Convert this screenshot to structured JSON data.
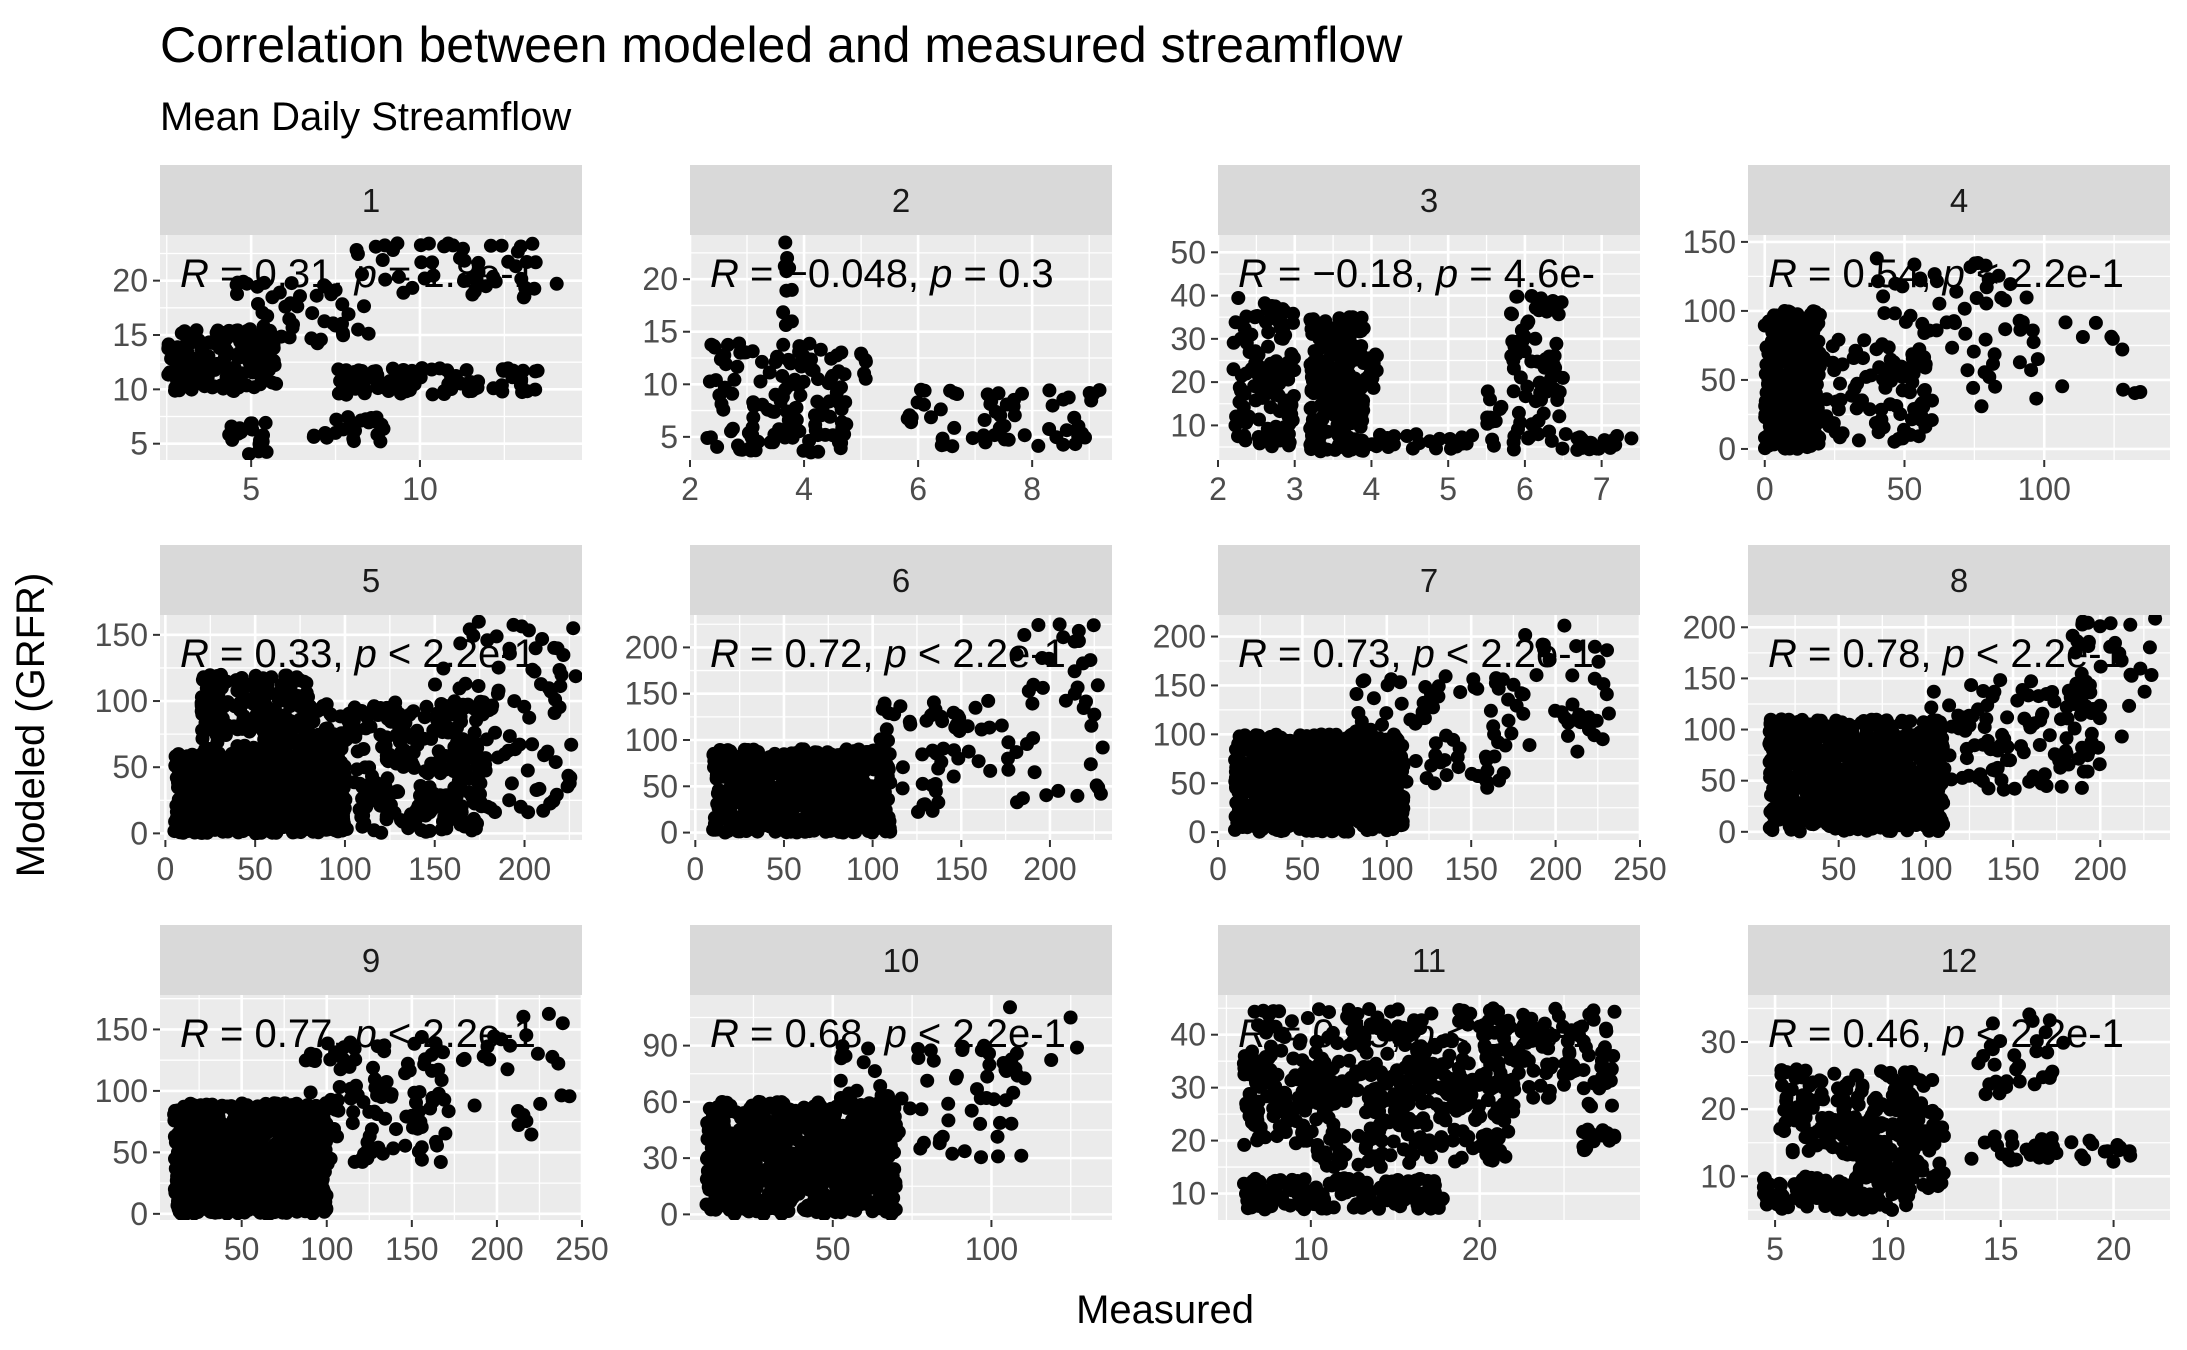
{
  "chart_data": {
    "type": "scatter",
    "title": "Correlation between modeled and measured streamflow",
    "subtitle": "Mean Daily Streamflow",
    "xlabel": "Measured",
    "ylabel": "Modeled (GRFR)",
    "grid": true,
    "colors": {
      "panel_bg": "#ebebeb",
      "strip_bg": "#d9d9d9",
      "grid": "#ffffff",
      "points": "#000000",
      "ticks": "#4d4d4d"
    },
    "facets": [
      {
        "label": "1",
        "r_value": "0.31",
        "p_value": "= 1.8e-1",
        "p_op": "=",
        "p_num": "1.8e-1",
        "xlim": [
          2.3,
          14.8
        ],
        "ylim": [
          3.5,
          24.2
        ],
        "xticks": [
          5,
          10
        ],
        "yticks": [
          5,
          10,
          15,
          20
        ],
        "clusters": [
          {
            "x": [
              2.5,
              5.8
            ],
            "y": [
              9.8,
              15.5
            ],
            "n": 150
          },
          {
            "x": [
              4.5,
              8.5
            ],
            "y": [
              14.0,
              20.0
            ],
            "n": 50
          },
          {
            "x": [
              8.0,
              14.2
            ],
            "y": [
              18.0,
              23.5
            ],
            "n": 50
          },
          {
            "x": [
              7.5,
              13.5
            ],
            "y": [
              9.5,
              12.0
            ],
            "n": 90
          },
          {
            "x": [
              6.8,
              9.0
            ],
            "y": [
              5.0,
              7.5
            ],
            "n": 25
          },
          {
            "x": [
              4.2,
              5.5
            ],
            "y": [
              4.0,
              7.0
            ],
            "n": 20
          }
        ]
      },
      {
        "label": "2",
        "r_value": "−0.048",
        "p_value": "= 0.3",
        "p_op": "=",
        "p_num": "0.3",
        "xlim": [
          2.0,
          9.4
        ],
        "ylim": [
          2.8,
          24.2
        ],
        "xticks": [
          2,
          4,
          6,
          8
        ],
        "yticks": [
          5,
          10,
          15,
          20
        ],
        "clusters": [
          {
            "x": [
              2.3,
              4.8
            ],
            "y": [
              3.5,
              14.0
            ],
            "n": 130
          },
          {
            "x": [
              3.6,
              3.8
            ],
            "y": [
              15.0,
              23.5
            ],
            "n": 10
          },
          {
            "x": [
              5.0,
              5.1
            ],
            "y": [
              10.0,
              13.0
            ],
            "n": 6
          },
          {
            "x": [
              5.8,
              9.2
            ],
            "y": [
              4.0,
              9.5
            ],
            "n": 60
          }
        ]
      },
      {
        "label": "3",
        "r_value": "−0.18",
        "p_value": "= 4.6e-",
        "p_op": "=",
        "p_num": "4.6e-",
        "xlim": [
          2.0,
          7.5
        ],
        "ylim": [
          2.0,
          54.0
        ],
        "xticks": [
          2,
          3,
          4,
          5,
          6,
          7
        ],
        "yticks": [
          10,
          20,
          30,
          40,
          50
        ],
        "clusters": [
          {
            "x": [
              2.2,
              3.0
            ],
            "y": [
              4.0,
              40.0
            ],
            "n": 120
          },
          {
            "x": [
              3.2,
              3.9
            ],
            "y": [
              4.0,
              35.0
            ],
            "n": 260
          },
          {
            "x": [
              3.9,
              4.1
            ],
            "y": [
              18.0,
              28.0
            ],
            "n": 12
          },
          {
            "x": [
              4.0,
              5.5
            ],
            "y": [
              4.0,
              8.0
            ],
            "n": 25
          },
          {
            "x": [
              5.5,
              5.7
            ],
            "y": [
              5.0,
              18.0
            ],
            "n": 12
          },
          {
            "x": [
              5.8,
              6.5
            ],
            "y": [
              4.0,
              40.0
            ],
            "n": 80
          },
          {
            "x": [
              6.5,
              7.4
            ],
            "y": [
              4.0,
              8.0
            ],
            "n": 20
          }
        ]
      },
      {
        "label": "4",
        "r_value": "0.54",
        "p_value": "< 2.2e-1",
        "p_op": "<",
        "p_num": "2.2e-1",
        "xlim": [
          -6,
          145
        ],
        "ylim": [
          -8,
          155
        ],
        "xticks": [
          0,
          50,
          100
        ],
        "yticks": [
          0,
          50,
          100,
          150
        ],
        "clusters": [
          {
            "x": [
              0,
              20
            ],
            "y": [
              0,
              100
            ],
            "n": 350
          },
          {
            "x": [
              10,
              60
            ],
            "y": [
              5,
              80
            ],
            "n": 90
          },
          {
            "x": [
              40,
              100
            ],
            "y": [
              30,
              140
            ],
            "n": 70
          },
          {
            "x": [
              100,
              140
            ],
            "y": [
              20,
              95
            ],
            "n": 10
          }
        ]
      },
      {
        "label": "5",
        "r_value": "0.33",
        "p_value": "< 2.2e-1",
        "p_op": "<",
        "p_num": "2.2e-1",
        "xlim": [
          -3,
          232
        ],
        "ylim": [
          -5,
          165
        ],
        "xticks": [
          0,
          50,
          100,
          150,
          200
        ],
        "yticks": [
          0,
          50,
          100,
          150
        ],
        "clusters": [
          {
            "x": [
              5,
              100
            ],
            "y": [
              0,
              60
            ],
            "n": 900
          },
          {
            "x": [
              20,
              80
            ],
            "y": [
              20,
              120
            ],
            "n": 300
          },
          {
            "x": [
              80,
              180
            ],
            "y": [
              0,
              100
            ],
            "n": 300
          },
          {
            "x": [
              150,
              230
            ],
            "y": [
              10,
              160
            ],
            "n": 90
          }
        ]
      },
      {
        "label": "6",
        "r_value": "0.72",
        "p_value": "< 2.2e-1",
        "p_op": "<",
        "p_num": "2.2e-1",
        "xlim": [
          -3,
          235
        ],
        "ylim": [
          -8,
          235
        ],
        "xticks": [
          0,
          50,
          100,
          150,
          200
        ],
        "yticks": [
          0,
          50,
          100,
          150,
          200
        ],
        "clusters": [
          {
            "x": [
              10,
              110
            ],
            "y": [
              0,
              90
            ],
            "n": 700
          },
          {
            "x": [
              100,
              180
            ],
            "y": [
              20,
              150
            ],
            "n": 60
          },
          {
            "x": [
              180,
              230
            ],
            "y": [
              30,
              230
            ],
            "n": 40
          }
        ]
      },
      {
        "label": "7",
        "r_value": "0.73",
        "p_value": "< 2.2e-1",
        "p_op": "<",
        "p_num": "2.2e-1",
        "xlim": [
          0,
          250
        ],
        "ylim": [
          -8,
          222
        ],
        "xticks": [
          0,
          50,
          100,
          150,
          200,
          250
        ],
        "yticks": [
          0,
          50,
          100,
          150,
          200
        ],
        "clusters": [
          {
            "x": [
              10,
              110
            ],
            "y": [
              0,
              100
            ],
            "n": 700
          },
          {
            "x": [
              80,
              180
            ],
            "y": [
              40,
              160
            ],
            "n": 90
          },
          {
            "x": [
              180,
              235
            ],
            "y": [
              80,
              215
            ],
            "n": 35
          }
        ]
      },
      {
        "label": "8",
        "r_value": "0.78",
        "p_value": "< 2.2e-1",
        "p_op": "<",
        "p_num": "2.2e-1",
        "xlim": [
          -2,
          240
        ],
        "ylim": [
          -8,
          212
        ],
        "xticks": [
          50,
          100,
          150,
          200
        ],
        "yticks": [
          0,
          50,
          100,
          150,
          200
        ],
        "clusters": [
          {
            "x": [
              10,
              110
            ],
            "y": [
              0,
              110
            ],
            "n": 800
          },
          {
            "x": [
              100,
              200
            ],
            "y": [
              40,
              150
            ],
            "n": 120
          },
          {
            "x": [
              180,
              235
            ],
            "y": [
              80,
              210
            ],
            "n": 40
          }
        ]
      },
      {
        "label": "9",
        "r_value": "0.77",
        "p_value": "< 2.2e-1",
        "p_op": "<",
        "p_num": "2.2e-1",
        "xlim": [
          2,
          250
        ],
        "ylim": [
          -5,
          178
        ],
        "xticks": [
          50,
          100,
          150,
          200,
          250
        ],
        "yticks": [
          0,
          50,
          100,
          150
        ],
        "clusters": [
          {
            "x": [
              10,
              100
            ],
            "y": [
              0,
              90
            ],
            "n": 800
          },
          {
            "x": [
              80,
              170
            ],
            "y": [
              40,
              140
            ],
            "n": 100
          },
          {
            "x": [
              150,
              245
            ],
            "y": [
              60,
              170
            ],
            "n": 35
          }
        ]
      },
      {
        "label": "10",
        "r_value": "0.68",
        "p_value": "< 2.2e-1",
        "p_op": "<",
        "p_num": "2.2e-1",
        "xlim": [
          5,
          138
        ],
        "ylim": [
          -3,
          117
        ],
        "xticks": [
          50,
          100
        ],
        "yticks": [
          0,
          30,
          60,
          90
        ],
        "clusters": [
          {
            "x": [
              10,
              70
            ],
            "y": [
              0,
              60
            ],
            "n": 700
          },
          {
            "x": [
              50,
              110
            ],
            "y": [
              30,
              90
            ],
            "n": 80
          },
          {
            "x": [
              100,
              135
            ],
            "y": [
              60,
              112
            ],
            "n": 10
          }
        ]
      },
      {
        "label": "11",
        "r_value": "0.45",
        "p_value": "< 2.2e-1",
        "p_op": "<",
        "p_num": "2.2e-1",
        "xlim": [
          4.5,
          29.5
        ],
        "ylim": [
          5.0,
          47.5
        ],
        "xticks": [
          10,
          20
        ],
        "yticks": [
          10,
          20,
          30,
          40
        ],
        "clusters": [
          {
            "x": [
              6,
              28
            ],
            "y": [
              26,
              45
            ],
            "n": 300
          },
          {
            "x": [
              6,
              22
            ],
            "y": [
              19,
              35
            ],
            "n": 250
          },
          {
            "x": [
              6,
              18
            ],
            "y": [
              7,
              13
            ],
            "n": 150
          },
          {
            "x": [
              10,
              22
            ],
            "y": [
              15,
              19
            ],
            "n": 40
          },
          {
            "x": [
              26,
              28
            ],
            "y": [
              18,
              23
            ],
            "n": 20
          }
        ]
      },
      {
        "label": "12",
        "r_value": "0.46",
        "p_value": "< 2.2e-1",
        "p_op": "<",
        "p_num": "2.2e-1",
        "xlim": [
          3.8,
          22.5
        ],
        "ylim": [
          3.5,
          37.0
        ],
        "xticks": [
          5,
          10,
          15,
          20
        ],
        "yticks": [
          10,
          20,
          30
        ],
        "clusters": [
          {
            "x": [
              4.5,
              11
            ],
            "y": [
              5,
              10
            ],
            "n": 120
          },
          {
            "x": [
              5,
              12
            ],
            "y": [
              13,
              26
            ],
            "n": 160
          },
          {
            "x": [
              8,
              12.5
            ],
            "y": [
              8,
              20
            ],
            "n": 120
          },
          {
            "x": [
              13.5,
              21.5
            ],
            "y": [
              12,
              16
            ],
            "n": 40
          },
          {
            "x": [
              14,
              18
            ],
            "y": [
              22,
              35
            ],
            "n": 30
          }
        ]
      }
    ]
  }
}
